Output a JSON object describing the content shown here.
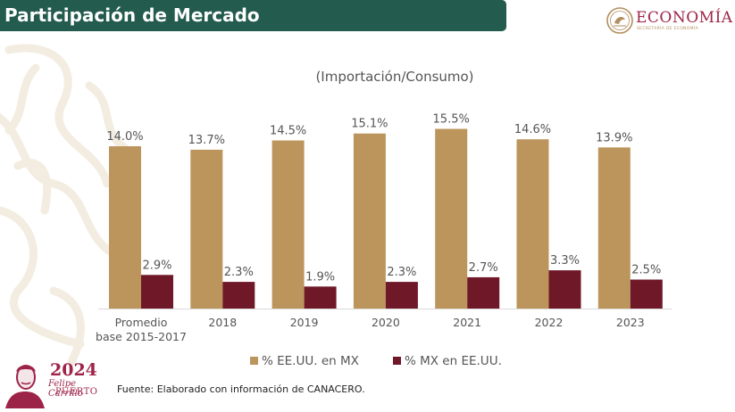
{
  "header": {
    "title": "Participación de Mercado"
  },
  "logo": {
    "name": "ECONOMÍA",
    "subtitle": "SECRETARÍA DE ECONOMÍA"
  },
  "chart_data": {
    "type": "bar",
    "title": "",
    "subtitle": "(Importación/Consumo)",
    "xlabel": "",
    "ylabel": "",
    "ylim": [
      0,
      16.5
    ],
    "grid": false,
    "legend_position": "bottom",
    "categories": [
      [
        "Promedio",
        "base 2015-2017"
      ],
      [
        "2018"
      ],
      [
        "2019"
      ],
      [
        "2020"
      ],
      [
        "2021"
      ],
      [
        "2022"
      ],
      [
        "2023"
      ]
    ],
    "series": [
      {
        "name": "% EE.UU. en MX",
        "color": "#bc955c",
        "values": [
          14.0,
          13.7,
          14.5,
          15.1,
          15.5,
          14.6,
          13.9
        ],
        "labels": [
          "14.0%",
          "13.7%",
          "14.5%",
          "15.1%",
          "15.5%",
          "14.6%",
          "13.9%"
        ]
      },
      {
        "name": "% MX en EE.UU.",
        "color": "#6f1828",
        "values": [
          2.9,
          2.3,
          1.9,
          2.3,
          2.7,
          3.3,
          2.5
        ],
        "labels": [
          "2.9%",
          "2.3%",
          "1.9%",
          "2.3%",
          "2.7%",
          "3.3%",
          "2.5%"
        ]
      }
    ]
  },
  "source": "Fuente: Elaborado con información de CANACERO.",
  "footer_logo": {
    "year": "2024",
    "line1": "Felipe Carrillo",
    "line2": "PUERTO"
  },
  "colors": {
    "header_bg": "#235b4e",
    "brand_red": "#9d2449",
    "gold": "#b38e5d"
  }
}
